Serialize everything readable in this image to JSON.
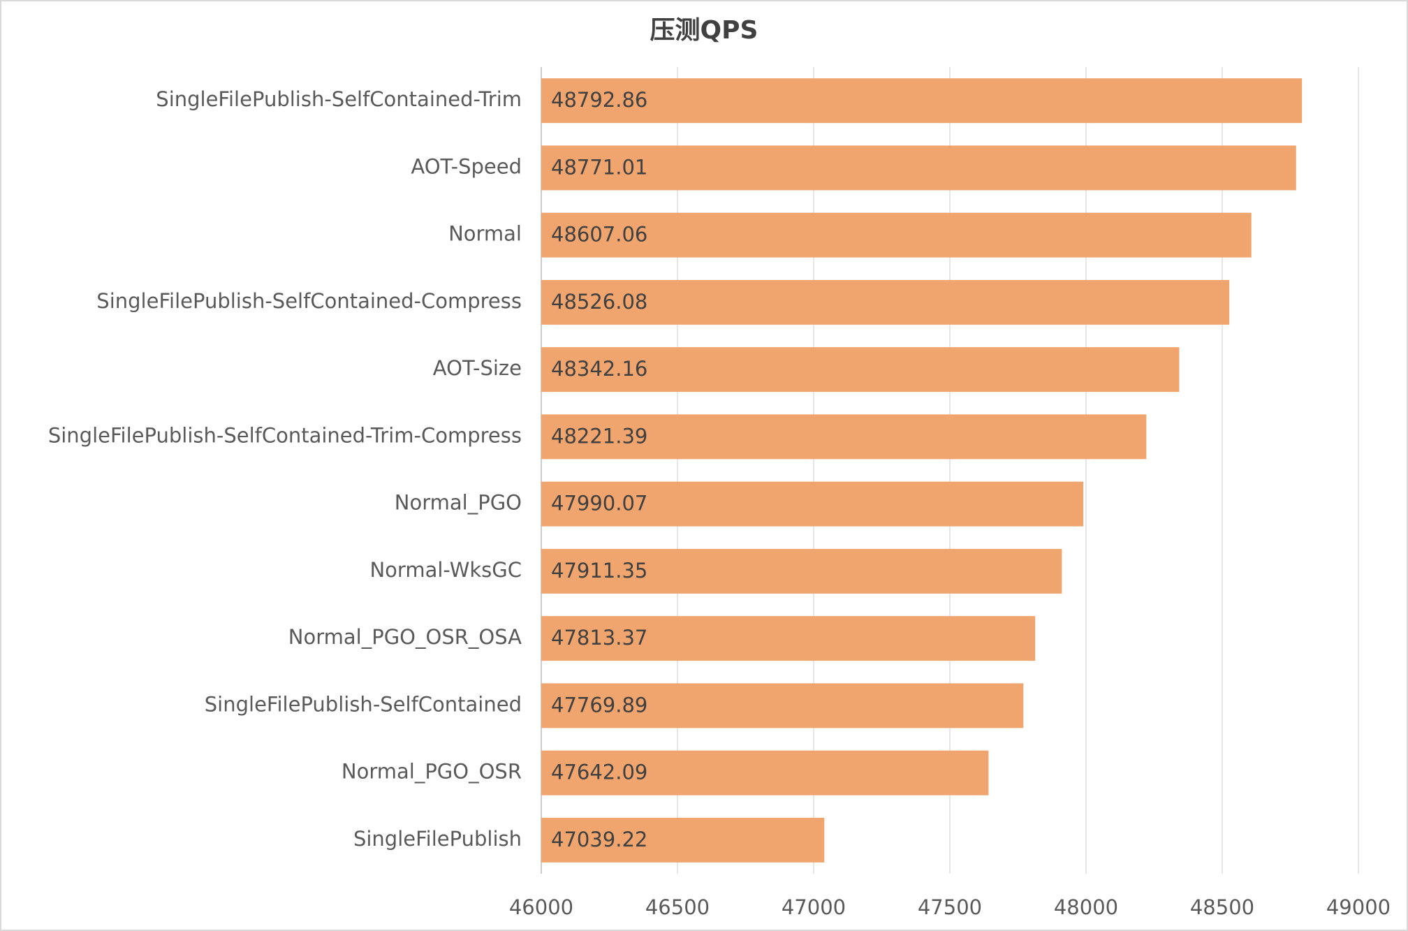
{
  "chart_data": {
    "type": "bar",
    "orientation": "horizontal",
    "title": "压测QPS",
    "categories": [
      "SingleFilePublish-SelfContained-Trim",
      "AOT-Speed",
      "Normal",
      "SingleFilePublish-SelfContained-Compress",
      "AOT-Size",
      "SingleFilePublish-SelfContained-Trim-Compress",
      "Normal_PGO",
      "Normal-WksGC",
      "Normal_PGO_OSR_OSA",
      "SingleFilePublish-SelfContained",
      "Normal_PGO_OSR",
      "SingleFilePublish"
    ],
    "values": [
      48792.86,
      48771.01,
      48607.06,
      48526.08,
      48342.16,
      48221.39,
      47990.07,
      47911.35,
      47813.37,
      47769.89,
      47642.09,
      47039.22
    ],
    "color": "#f0a46e",
    "xlim": [
      46000,
      49000
    ],
    "xticks": [
      46000,
      46500,
      47000,
      47500,
      48000,
      48500,
      49000
    ],
    "grid": true
  }
}
